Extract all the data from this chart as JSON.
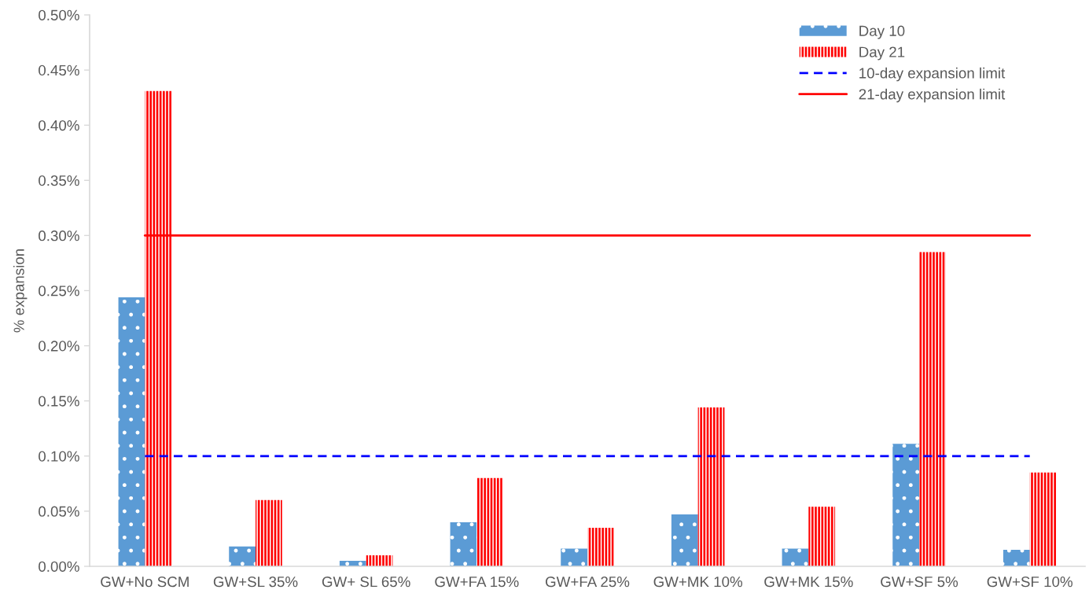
{
  "chart_data": {
    "type": "bar",
    "ylabel": "% expansion",
    "categories": [
      "GW+No SCM",
      "GW+SL 35%",
      "GW+ SL 65%",
      "GW+FA 15%",
      "GW+FA 25%",
      "GW+MK 10%",
      "GW+MK 15%",
      "GW+SF 5%",
      "GW+SF 10%"
    ],
    "series": [
      {
        "name": "Day 10",
        "color": "#5b9bd5",
        "values": [
          0.244,
          0.018,
          0.005,
          0.04,
          0.016,
          0.047,
          0.016,
          0.111,
          0.015
        ]
      },
      {
        "name": "Day 21",
        "color": "#ff0000",
        "values": [
          0.431,
          0.06,
          0.01,
          0.08,
          0.035,
          0.144,
          0.054,
          0.285,
          0.085
        ]
      },
      {
        "name": "10-day expansion limit",
        "type": "line",
        "color": "#0000ff",
        "line_style": "dashed",
        "values": [
          0.1,
          0.1,
          0.1,
          0.1,
          0.1,
          0.1,
          0.1,
          0.1,
          0.1
        ]
      },
      {
        "name": "21-day expansion limit",
        "type": "line",
        "color": "#ff0000",
        "line_style": "solid",
        "values": [
          0.3,
          0.3,
          0.3,
          0.3,
          0.3,
          0.3,
          0.3,
          0.3,
          0.3
        ]
      }
    ],
    "ylim": [
      0,
      0.5
    ],
    "yticks": [
      {
        "value": 0,
        "label": "0.00%"
      },
      {
        "value": 0.05,
        "label": "0.05%"
      },
      {
        "value": 0.1,
        "label": "0.10%"
      },
      {
        "value": 0.15,
        "label": "0.15%"
      },
      {
        "value": 0.2,
        "label": "0.20%"
      },
      {
        "value": 0.25,
        "label": "0.25%"
      },
      {
        "value": 0.3,
        "label": "0.30%"
      },
      {
        "value": 0.35,
        "label": "0.35%"
      },
      {
        "value": 0.4,
        "label": "0.40%"
      },
      {
        "value": 0.45,
        "label": "0.45%"
      },
      {
        "value": 0.5,
        "label": "0.50%"
      }
    ],
    "grid": false,
    "legend": "top right"
  }
}
